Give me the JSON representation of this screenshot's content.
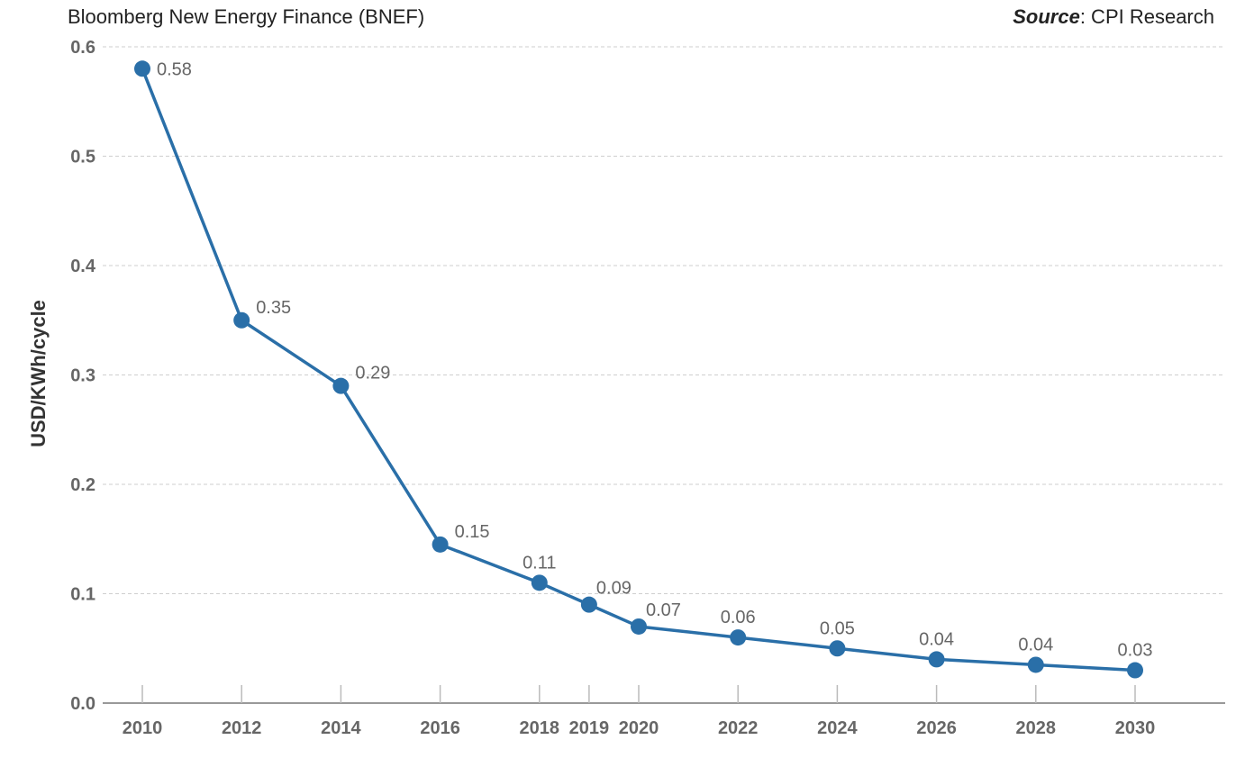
{
  "header": {
    "left_text": "Bloomberg New Energy Finance (BNEF)",
    "source_label": "Source",
    "source_value": ": CPI Research"
  },
  "chart_data": {
    "type": "line",
    "title": "",
    "xlabel": "",
    "ylabel": "USD/KWh/cycle",
    "ylim": [
      0,
      0.6
    ],
    "yticks": [
      "0.0",
      "0.1",
      "0.2",
      "0.3",
      "0.4",
      "0.5",
      "0.6"
    ],
    "grid": true,
    "line_color": "#2a6fa8",
    "x": [
      "2010",
      "2012",
      "2014",
      "2016",
      "2018",
      "2019",
      "2020",
      "2022",
      "2024",
      "2026",
      "2028",
      "2030"
    ],
    "series": [
      {
        "values": [
          0.58,
          0.35,
          0.29,
          0.145,
          0.11,
          0.09,
          0.07,
          0.06,
          0.05,
          0.04,
          0.035,
          0.03
        ],
        "labels": [
          "0.58",
          "0.35",
          "0.29",
          "0.15",
          "0.11",
          "0.09",
          "0.07",
          "0.06",
          "0.05",
          "0.04",
          "0.04",
          "0.03"
        ]
      }
    ]
  }
}
